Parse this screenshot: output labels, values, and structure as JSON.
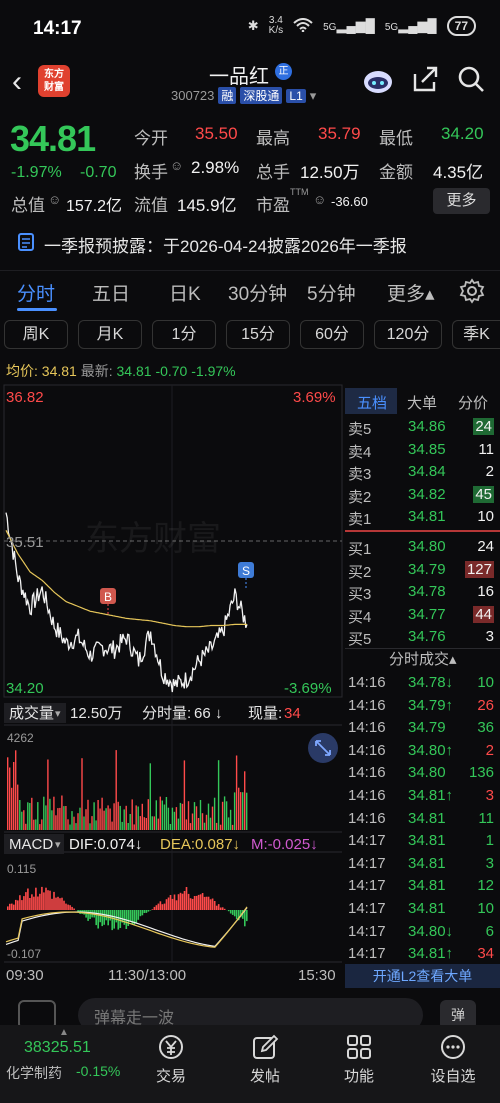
{
  "status": {
    "time": "14:17",
    "net_speed_top": "3.4",
    "net_speed_bottom": "K/s",
    "sig1": "5G",
    "sig2": "5G",
    "battery": "77"
  },
  "header": {
    "logo_line1": "东方",
    "logo_line2": "财富",
    "name": "一品红",
    "zheng": "正",
    "code": "300723",
    "tag_rong": "融",
    "tag_shen": "深股通",
    "tag_l1": "L1"
  },
  "quote": {
    "price": "34.81",
    "change_pct": "-1.97%",
    "change": "-0.70",
    "open_label": "今开",
    "open": "35.50",
    "high_label": "最高",
    "high": "35.79",
    "low_label": "最低",
    "low": "34.20",
    "turnover_label": "换手",
    "turnover": "2.98%",
    "volume_label": "总手",
    "volume": "12.50万",
    "amount_label": "金额",
    "amount": "4.35亿",
    "mktcap_label": "总值",
    "mktcap": "157.2亿",
    "float_label": "流值",
    "float": "145.9亿",
    "pe_label": "市盈",
    "pe_sup": "TTM",
    "pe": "-36.60",
    "more": "更多"
  },
  "announce": {
    "text": "一季报预披露：于2026-04-24披露2026年一季报"
  },
  "tabs": [
    {
      "label": "分时"
    },
    {
      "label": "五日"
    },
    {
      "label": "日K"
    },
    {
      "label": "30分钟"
    },
    {
      "label": "5分钟"
    },
    {
      "label": "更多▴"
    }
  ],
  "chips": [
    {
      "label": "周K"
    },
    {
      "label": "月K"
    },
    {
      "label": "1分"
    },
    {
      "label": "15分"
    },
    {
      "label": "60分"
    },
    {
      "label": "120分"
    },
    {
      "label": "季K"
    }
  ],
  "avg": {
    "label": "均价:",
    "value": "34.81",
    "latest_label": "最新:",
    "latest": "34.81",
    "chg": "-0.70",
    "pct": "-1.97%"
  },
  "chart": {
    "y_top": "36.82",
    "y_mid": "35.51",
    "y_bot": "34.20",
    "pct_top": "3.69%",
    "pct_bot": "-3.69%",
    "watermark": "东方财富",
    "marker_b": "B",
    "marker_s": "S",
    "vol_label": "成交量",
    "vol_total": "12.50万",
    "vol_fen_label": "分时量:",
    "vol_fen": "66",
    "vol_now_label": "现量:",
    "vol_now": "34",
    "vol_max": "4262",
    "macd_label": "MACD",
    "dif": "DIF:0.074↓",
    "dea": "DEA:0.087↓",
    "m": "M:-0.025↓",
    "macd_top": "0.115",
    "macd_bot": "-0.107",
    "t_start": "09:30",
    "t_mid": "11:30/13:00",
    "t_end": "15:30"
  },
  "chart_data": {
    "type": "line",
    "title": "",
    "ylim": [
      34.2,
      36.82
    ],
    "prev_close": 35.51,
    "x": [
      "09:30",
      "09:40",
      "09:50",
      "10:00",
      "10:10",
      "10:20",
      "10:30",
      "10:40",
      "10:50",
      "11:00",
      "11:10",
      "11:20",
      "11:30",
      "13:10",
      "13:20",
      "13:30",
      "13:40",
      "13:50",
      "14:00",
      "14:10",
      "14:17"
    ],
    "series": [
      {
        "values": [
          35.75,
          35.2,
          34.95,
          35.1,
          34.8,
          34.65,
          34.7,
          34.55,
          34.62,
          34.6,
          34.7,
          34.5,
          34.75,
          34.4,
          34.3,
          34.35,
          34.5,
          34.6,
          34.75,
          35.05,
          34.81
        ]
      },
      {
        "values": [
          35.6,
          35.4,
          35.25,
          35.18,
          35.08,
          35.0,
          34.96,
          34.92,
          34.9,
          34.88,
          34.86,
          34.85,
          34.84,
          34.82,
          34.8,
          34.79,
          34.79,
          34.8,
          34.8,
          34.81,
          34.81
        ]
      }
    ]
  },
  "book": {
    "tab_wudang": "五档",
    "tab_dadan": "大单",
    "tab_fenjia": "分价",
    "asks": [
      {
        "label": "卖5",
        "price": "34.86",
        "vol": "24"
      },
      {
        "label": "卖4",
        "price": "34.85",
        "vol": "11"
      },
      {
        "label": "卖3",
        "price": "34.84",
        "vol": "2"
      },
      {
        "label": "卖2",
        "price": "34.82",
        "vol": "45"
      },
      {
        "label": "卖1",
        "price": "34.81",
        "vol": "10"
      }
    ],
    "bids": [
      {
        "label": "买1",
        "price": "34.80",
        "vol": "24"
      },
      {
        "label": "买2",
        "price": "34.79",
        "vol": "127"
      },
      {
        "label": "买3",
        "price": "34.78",
        "vol": "16"
      },
      {
        "label": "买4",
        "price": "34.77",
        "vol": "44"
      },
      {
        "label": "买5",
        "price": "34.76",
        "vol": "3"
      }
    ],
    "trades_title": "分时成交▴",
    "trades": [
      {
        "t": "14:16",
        "p": "34.78↓",
        "v": "10"
      },
      {
        "t": "14:16",
        "p": "34.79↑",
        "v": "26"
      },
      {
        "t": "14:16",
        "p": "34.79",
        "v": "36"
      },
      {
        "t": "14:16",
        "p": "34.80↑",
        "v": "2"
      },
      {
        "t": "14:16",
        "p": "34.80",
        "v": "136"
      },
      {
        "t": "14:16",
        "p": "34.81↑",
        "v": "3"
      },
      {
        "t": "14:16",
        "p": "34.81",
        "v": "11"
      },
      {
        "t": "14:17",
        "p": "34.81",
        "v": "1"
      },
      {
        "t": "14:17",
        "p": "34.81",
        "v": "3"
      },
      {
        "t": "14:17",
        "p": "34.81",
        "v": "12"
      },
      {
        "t": "14:17",
        "p": "34.81",
        "v": "10"
      },
      {
        "t": "14:17",
        "p": "34.80↓",
        "v": "6"
      },
      {
        "t": "14:17",
        "p": "34.81↑",
        "v": "34"
      }
    ],
    "l2": "开通L2查看大单"
  },
  "comment": {
    "placeholder": "弹幕走一波"
  },
  "bottom": {
    "index_value": "38325.51",
    "index_name": "化学制药",
    "index_pct": "-0.15%",
    "trade": "交易",
    "post": "发帖",
    "func": "功能",
    "alert": "设自选"
  },
  "colors": {
    "up": "#ff4a4a",
    "down": "#34c759",
    "accent": "#4a90ff",
    "avg_line": "#e6c65a"
  }
}
